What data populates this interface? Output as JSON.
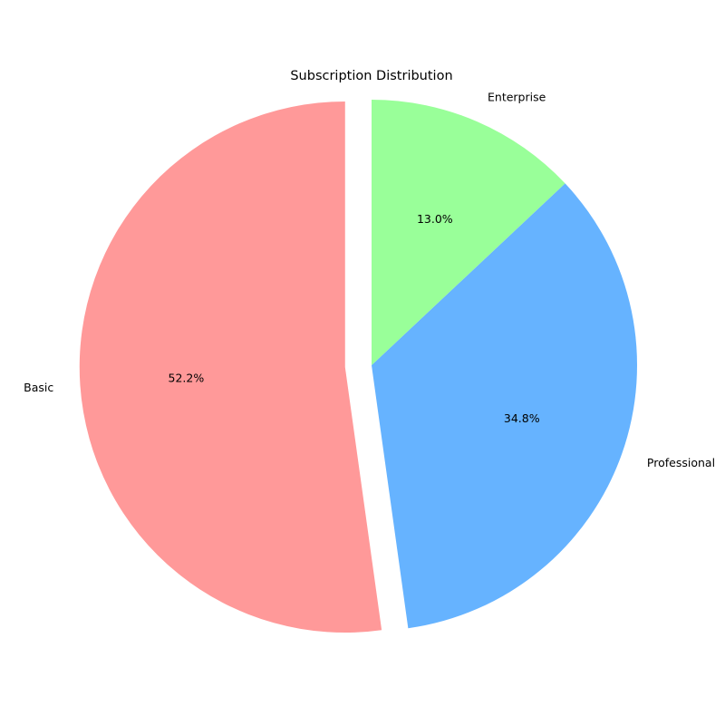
{
  "chart_data": {
    "type": "pie",
    "title": "Subscription Distribution",
    "categories": [
      "Basic",
      "Professional",
      "Enterprise"
    ],
    "values": [
      52.2,
      34.8,
      13.0
    ],
    "percent_labels": [
      "52.2%",
      "34.8%",
      "13.0%"
    ],
    "colors": [
      "#ff9999",
      "#66b3ff",
      "#99ff99"
    ],
    "exploded": [
      "Basic"
    ],
    "start_angle_deg": 90,
    "direction": "counterclockwise"
  }
}
